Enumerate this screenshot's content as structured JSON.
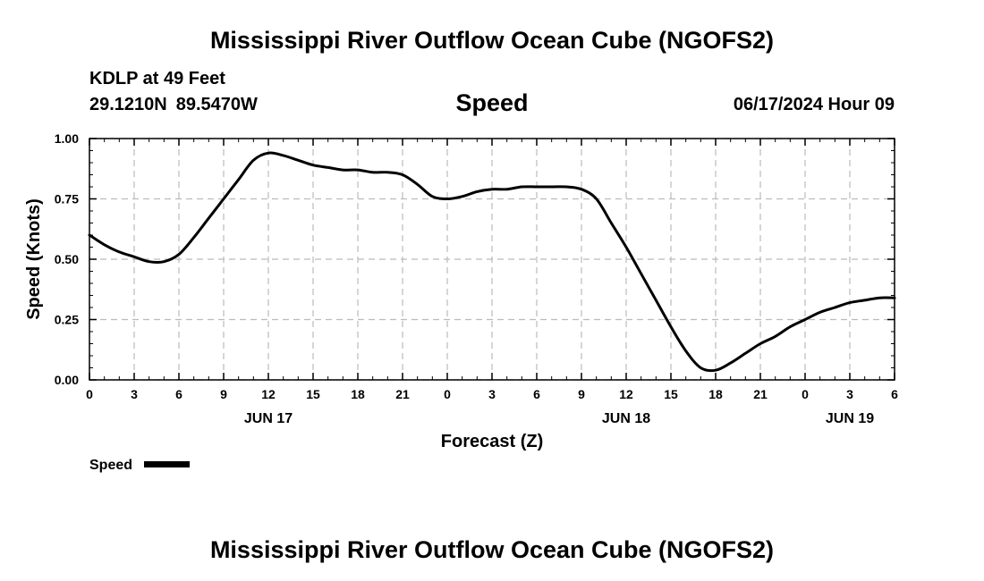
{
  "header": {
    "title": "Mississippi River Outflow Ocean Cube (NGOFS2)",
    "station": "KDLP at 49 Feet",
    "latitude": "29.1210N",
    "longitude": "89.5470W",
    "variable": "Speed",
    "datetime": "06/17/2024 Hour 09"
  },
  "footer": {
    "title": "Mississippi River Outflow Ocean Cube (NGOFS2)"
  },
  "chart_data": {
    "type": "line",
    "title": "Speed",
    "xlabel": "Forecast (Z)",
    "ylabel": "Speed (Knots)",
    "xlim": [
      0,
      54
    ],
    "ylim": [
      0,
      1
    ],
    "grid": true,
    "line_color": "#000000",
    "grid_color": "#bbbbbb",
    "x_ticks": [
      {
        "x": 0,
        "label": "0"
      },
      {
        "x": 3,
        "label": "3"
      },
      {
        "x": 6,
        "label": "6"
      },
      {
        "x": 9,
        "label": "9"
      },
      {
        "x": 12,
        "label": "12"
      },
      {
        "x": 15,
        "label": "15"
      },
      {
        "x": 18,
        "label": "18"
      },
      {
        "x": 21,
        "label": "21"
      },
      {
        "x": 24,
        "label": "0"
      },
      {
        "x": 27,
        "label": "3"
      },
      {
        "x": 30,
        "label": "6"
      },
      {
        "x": 33,
        "label": "9"
      },
      {
        "x": 36,
        "label": "12"
      },
      {
        "x": 39,
        "label": "15"
      },
      {
        "x": 42,
        "label": "18"
      },
      {
        "x": 45,
        "label": "21"
      },
      {
        "x": 48,
        "label": "0"
      },
      {
        "x": 51,
        "label": "3"
      },
      {
        "x": 54,
        "label": "6"
      }
    ],
    "day_labels": [
      {
        "x": 12,
        "label": "JUN 17"
      },
      {
        "x": 36,
        "label": "JUN 18"
      },
      {
        "x": 51,
        "label": "JUN 19"
      }
    ],
    "y_ticks": [
      {
        "y": 0,
        "label": "0.00"
      },
      {
        "y": 0.25,
        "label": "0.25"
      },
      {
        "y": 0.5,
        "label": "0.50"
      },
      {
        "y": 0.75,
        "label": "0.75"
      },
      {
        "y": 1,
        "label": "1.00"
      }
    ],
    "series": [
      {
        "name": "Speed",
        "x": [
          0,
          1,
          2,
          3,
          4,
          5,
          6,
          7,
          8,
          9,
          10,
          11,
          12,
          13,
          14,
          15,
          16,
          17,
          18,
          19,
          20,
          21,
          22,
          23,
          24,
          25,
          26,
          27,
          28,
          29,
          30,
          31,
          32,
          33,
          34,
          35,
          36,
          37,
          38,
          39,
          40,
          41,
          42,
          43,
          44,
          45,
          46,
          47,
          48,
          49,
          50,
          51,
          52,
          53,
          54
        ],
        "values": [
          0.6,
          0.56,
          0.53,
          0.51,
          0.49,
          0.49,
          0.52,
          0.59,
          0.67,
          0.75,
          0.83,
          0.91,
          0.94,
          0.93,
          0.91,
          0.89,
          0.88,
          0.87,
          0.87,
          0.86,
          0.86,
          0.85,
          0.81,
          0.76,
          0.75,
          0.76,
          0.78,
          0.79,
          0.79,
          0.8,
          0.8,
          0.8,
          0.8,
          0.79,
          0.75,
          0.65,
          0.55,
          0.44,
          0.33,
          0.22,
          0.12,
          0.05,
          0.04,
          0.07,
          0.11,
          0.15,
          0.18,
          0.22,
          0.25,
          0.28,
          0.3,
          0.32,
          0.33,
          0.34,
          0.34
        ]
      }
    ],
    "legend": {
      "position": "bottom-left",
      "label": "Speed"
    }
  }
}
